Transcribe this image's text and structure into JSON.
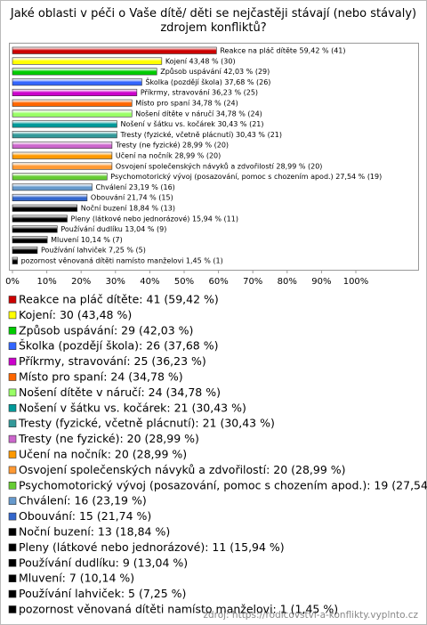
{
  "chart_data": {
    "type": "barh",
    "title": "Jaké oblasti v péči o Vaše dítě/ děti se nejčastěji stávají (nebo stávaly) zdrojem konfliktů?",
    "categories": [
      "Reakce na pláč dítěte",
      "Kojení",
      "Způsob uspávání",
      "Školka (pozdějí škola)",
      "Příkrmy, stravování",
      "Místo pro spaní",
      "Nošení dítěte v náručí",
      "Nošení v šátku vs. kočárek",
      "Tresty (fyzické, včetně plácnutí)",
      "Tresty (ne fyzické)",
      "Učení na nočník",
      "Osvojení společenských návyků a zdvořilostí",
      "Psychomotorický vývoj (posazování, pomoc s chozením apod.)",
      "Chválení",
      "Obouvání",
      "Noční buzení",
      "Pleny (látkové nebo jednorázové)",
      "Používání dudlíku",
      "Mluvení",
      "Používání lahviček",
      "pozornost věnovaná dítěti namísto manželovi"
    ],
    "values": [
      59.42,
      43.48,
      42.03,
      37.68,
      36.23,
      34.78,
      34.78,
      30.43,
      30.43,
      28.99,
      28.99,
      28.99,
      27.54,
      23.19,
      21.74,
      18.84,
      15.94,
      13.04,
      10.14,
      7.25,
      1.45
    ],
    "value_labels": [
      "Reakce na pláč dítěte 59,42 % (41)",
      "Kojení 43,48 % (30)",
      "Způsob uspávání 42,03 % (29)",
      "Školka (pozdějí škola) 37,68 % (26)",
      "Příkrmy, stravování 36,23 % (25)",
      "Místo pro spaní 34,78 % (24)",
      "Nošení dítěte v náručí 34,78 % (24)",
      "Nošení v šátku vs. kočárek 30,43 % (21)",
      "Tresty (fyzické, včetně plácnutí) 30,43 % (21)",
      "Tresty (ne fyzické) 28,99 % (20)",
      "Učení na nočník 28,99 % (20)",
      "Osvojení společenských návyků a zdvořilostí 28,99 % (20)",
      "Psychomotorický vývoj (posazování, pomoc s chozením apod.) 27,54 % (19)",
      "Chválení 23,19 % (16)",
      "Obouvání 21,74 % (15)",
      "Noční buzení 18,84 % (13)",
      "Pleny (látkové nebo jednorázové) 15,94 % (11)",
      "Používání dudlíku 13,04 % (9)",
      "Mluvení 10,14 % (7)",
      "Používání lahviček 7,25 % (5)",
      "pozornost věnovaná dítěti namísto manželovi 1,45 % (1)"
    ],
    "legend_labels": [
      "Reakce na pláč dítěte: 41 (59,42 %)",
      "Kojení: 30 (43,48 %)",
      "Způsob uspávání: 29 (42,03 %)",
      "Školka (pozdějí škola): 26 (37,68 %)",
      "Příkrmy, stravování: 25 (36,23 %)",
      "Místo pro spaní: 24 (34,78 %)",
      "Nošení dítěte v náručí: 24 (34,78 %)",
      "Nošení v šátku vs. kočárek: 21 (30,43 %)",
      "Tresty (fyzické, včetně plácnutí): 21 (30,43 %)",
      "Tresty (ne fyzické): 20 (28,99 %)",
      "Učení na nočník: 20 (28,99 %)",
      "Osvojení společenských návyků a zdvořilostí: 20 (28,99 %)",
      "Psychomotorický vývoj (posazování, pomoc s chozením apod.): 19 (27,54",
      "Chválení: 16 (23,19 %)",
      "Obouvání: 15 (21,74 %)",
      "Noční buzení: 13 (18,84 %)",
      "Pleny (látkové nebo jednorázové): 11 (15,94 %)",
      "Používání dudlíku: 9 (13,04 %)",
      "Mluvení: 7 (10,14 %)",
      "Používání lahviček: 5 (7,25 %)",
      "pozornost věnovaná dítěti namísto manželovi: 1 (1,45 %)"
    ],
    "colors": [
      "#cc0000",
      "#ffff00",
      "#00cc00",
      "#3366ff",
      "#cc00cc",
      "#ff6600",
      "#99ff66",
      "#009999",
      "#339999",
      "#cc66cc",
      "#ff9900",
      "#ff9933",
      "#66cc33",
      "#6699cc",
      "#3366cc",
      "#000000",
      "#000000",
      "#000000",
      "#000000",
      "#000000",
      "#000000"
    ],
    "xlim": [
      0,
      100
    ],
    "xticks": [
      {
        "value": 0,
        "label": "0%"
      },
      {
        "value": 10,
        "label": "10%"
      },
      {
        "value": 20,
        "label": "20%"
      },
      {
        "value": 30,
        "label": "30%"
      },
      {
        "value": 40,
        "label": "40%"
      },
      {
        "value": 50,
        "label": "50%"
      },
      {
        "value": 60,
        "label": "60%"
      },
      {
        "value": 70,
        "label": "70%"
      },
      {
        "value": 80,
        "label": "80%"
      },
      {
        "value": 90,
        "label": "90%"
      },
      {
        "value": 100,
        "label": "100%"
      }
    ],
    "source": "zdroj: https://rodicovstvi-a-konflikty.vyplnto.cz"
  }
}
